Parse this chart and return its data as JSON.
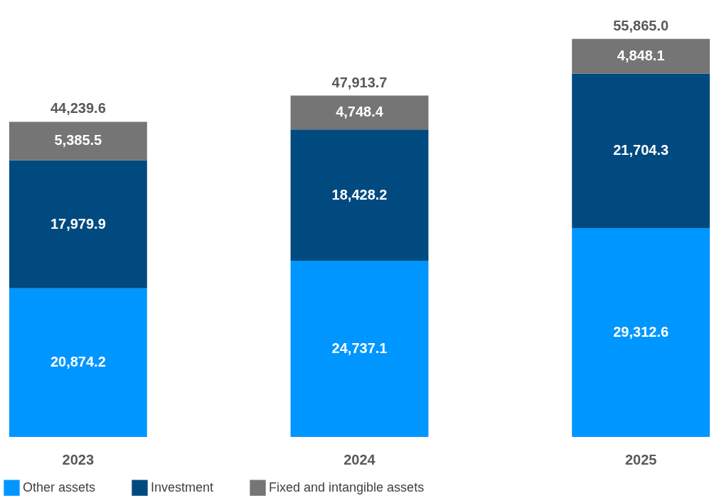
{
  "chart_data": {
    "type": "bar",
    "stacked": true,
    "legend": "bottom",
    "grid": false,
    "categories": [
      "2023",
      "2024",
      "2025"
    ],
    "series": [
      {
        "name": "Other assets",
        "color": "#0096ff",
        "values": [
          20874.2,
          24737.1,
          29312.6
        ],
        "value_labels": [
          "20,874.2",
          "24,737.1",
          "29,312.6"
        ]
      },
      {
        "name": "Investment",
        "color": "#004a7f",
        "values": [
          17979.9,
          18428.2,
          21704.3
        ],
        "value_labels": [
          "17,979.9",
          "18,428.2",
          "21,704.3"
        ]
      },
      {
        "name": "Fixed and intangible assets",
        "color": "#757575",
        "values": [
          5385.5,
          4748.4,
          4848.1
        ],
        "value_labels": [
          "5,385.5",
          "4,748.4",
          "4,848.1"
        ]
      }
    ],
    "totals": [
      "44,239.6",
      "47,913.7",
      "55,865.0"
    ]
  }
}
